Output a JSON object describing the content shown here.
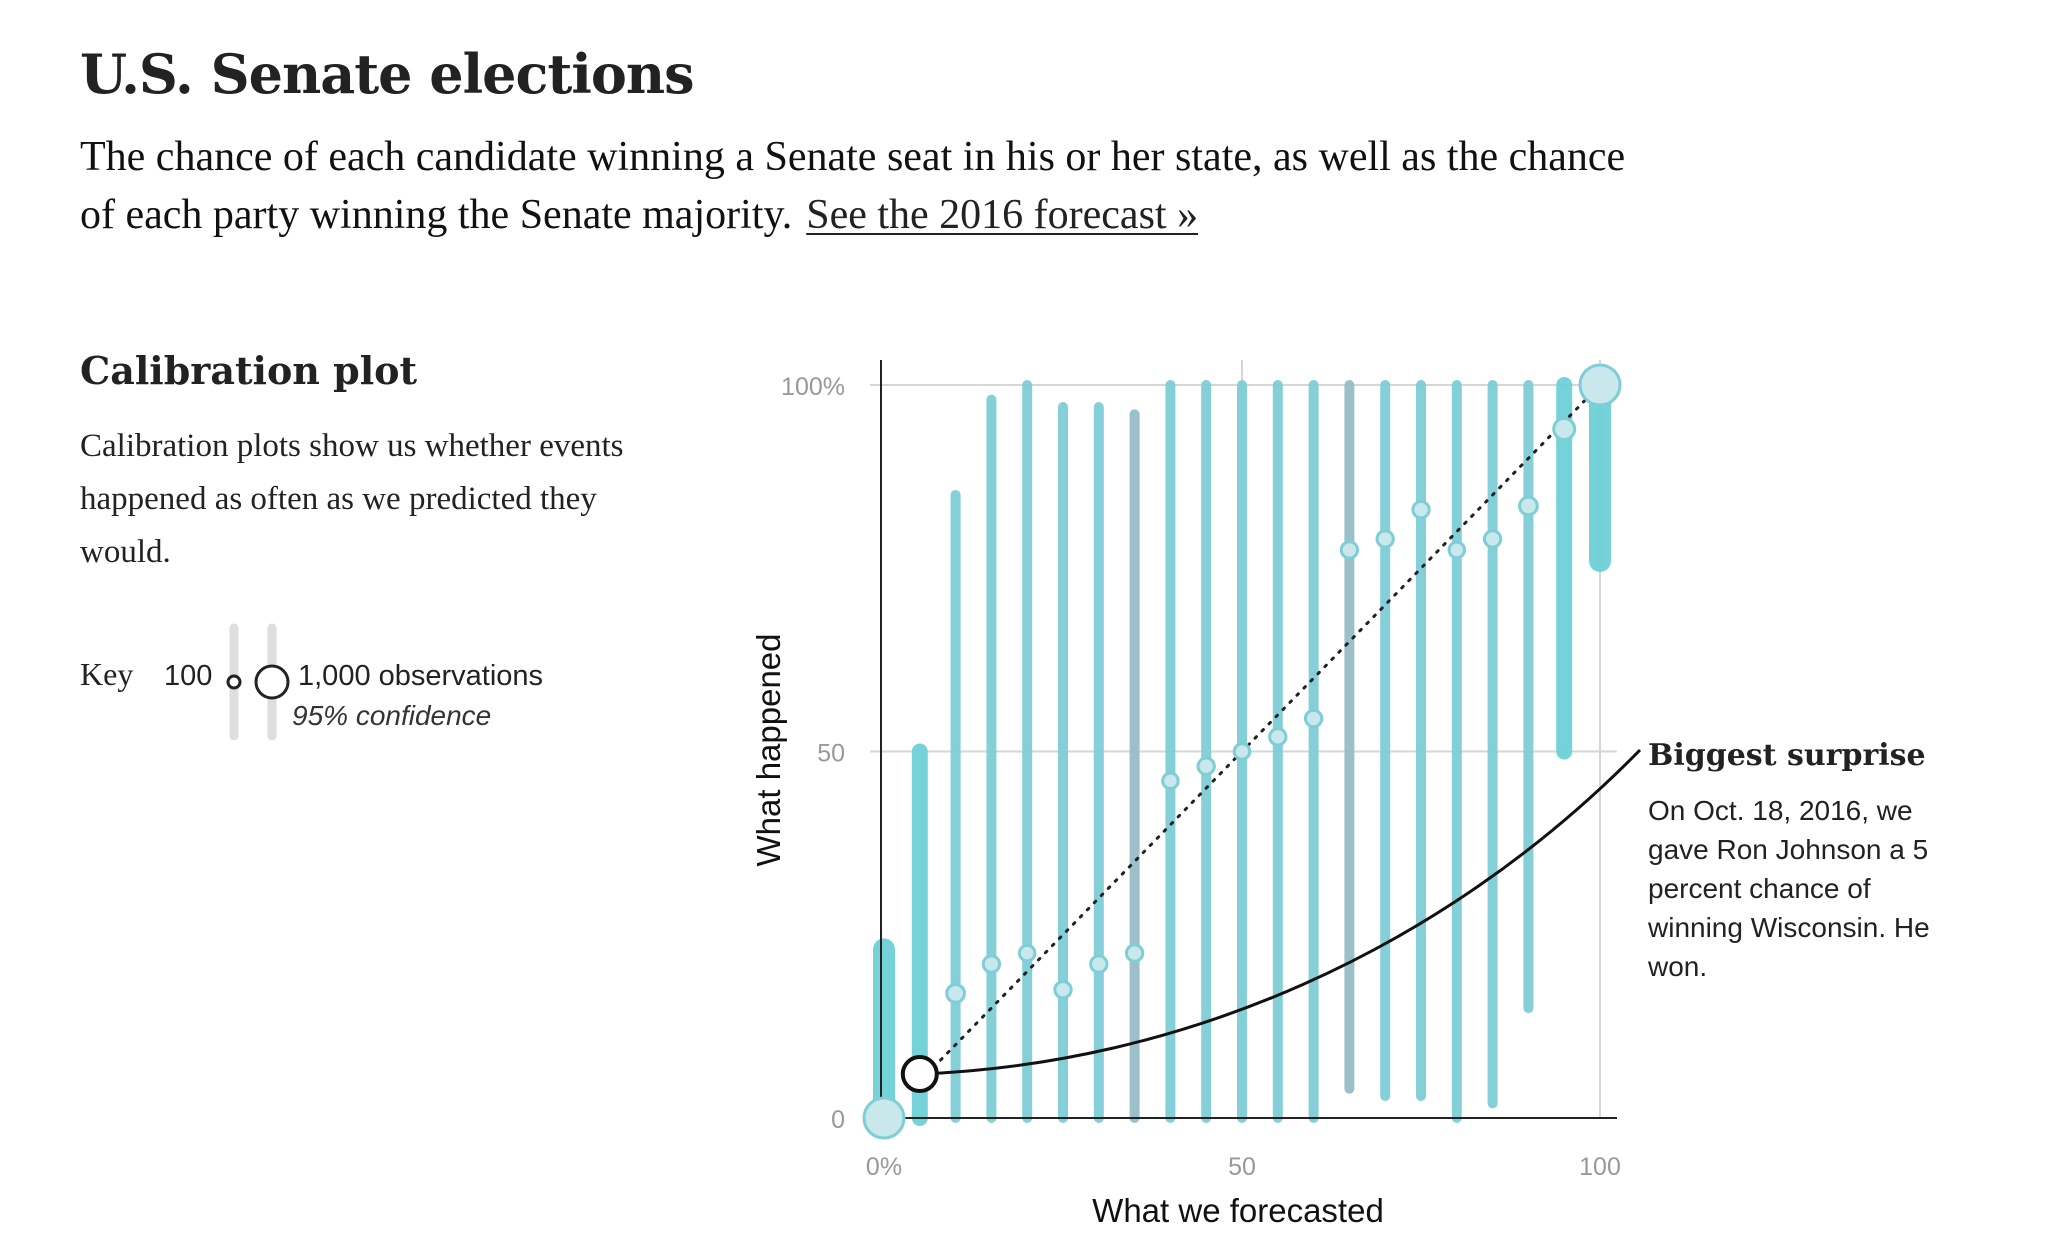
{
  "header": {
    "title": "U.S. Senate elections",
    "intro": "The chance of each candidate winning a Senate seat in his or her state, as well as the chance of each party winning the Senate majority.",
    "link_label": "See the 2016 forecast »"
  },
  "sidebar": {
    "title": "Calibration plot",
    "description": "Calibration plots show us whether events happened as often as we predicted they would.",
    "key": {
      "label": "Key",
      "small_value": "100",
      "large_value": "1,000 observations",
      "confidence_label": "95% confidence"
    }
  },
  "annotation": {
    "title": "Biggest surprise",
    "text": "On Oct. 18, 2016, we gave Ron Johnson a 5 percent chance of winning Wisconsin. He won."
  },
  "colors": {
    "teal": "#7fcdd6",
    "teal_dark": "#96bdc8",
    "teal_bright": "#6fd0d8",
    "dot_fill": "#c8e8ec",
    "axis": "#222222",
    "grid": "#d6d6d6"
  },
  "chart_data": {
    "type": "scatter",
    "xlabel": "What we forecasted",
    "ylabel": "What happened",
    "xlim": [
      0,
      100
    ],
    "ylim": [
      0,
      100
    ],
    "x_ticks": [
      {
        "value": 0,
        "label": "0%"
      },
      {
        "value": 50,
        "label": "50"
      },
      {
        "value": 100,
        "label": "100"
      }
    ],
    "y_ticks": [
      {
        "value": 0,
        "label": "0"
      },
      {
        "value": 50,
        "label": "50"
      },
      {
        "value": 100,
        "label": "100%"
      }
    ],
    "grid": true,
    "diagonal": [
      [
        0,
        0
      ],
      [
        100,
        100
      ]
    ],
    "points": [
      {
        "x": 0,
        "y": 0,
        "low": 0,
        "high": 23,
        "obs": 900
      },
      {
        "x": 5,
        "y": 6,
        "low": 0,
        "high": 50,
        "obs": 120
      },
      {
        "x": 10,
        "y": 17,
        "low": 0,
        "high": 85,
        "obs": 60
      },
      {
        "x": 15,
        "y": 21,
        "low": 0,
        "high": 98,
        "obs": 40
      },
      {
        "x": 20,
        "y": 22.5,
        "low": 0,
        "high": 100,
        "obs": 30
      },
      {
        "x": 25,
        "y": 17.5,
        "low": 0,
        "high": 97,
        "obs": 40
      },
      {
        "x": 30,
        "y": 21,
        "low": 0,
        "high": 97,
        "obs": 40
      },
      {
        "x": 35,
        "y": 22.5,
        "low": 0,
        "high": 96,
        "obs": 40
      },
      {
        "x": 40,
        "y": 46,
        "low": 0,
        "high": 100,
        "obs": 30
      },
      {
        "x": 45,
        "y": 48,
        "low": 0,
        "high": 100,
        "obs": 40
      },
      {
        "x": 50,
        "y": 50,
        "low": 0,
        "high": 100,
        "obs": 30
      },
      {
        "x": 55,
        "y": 52,
        "low": 0,
        "high": 100,
        "obs": 40
      },
      {
        "x": 60,
        "y": 54.5,
        "low": 0,
        "high": 100,
        "obs": 40
      },
      {
        "x": 65,
        "y": 77.5,
        "low": 4,
        "high": 100,
        "obs": 40
      },
      {
        "x": 70,
        "y": 79,
        "low": 3,
        "high": 100,
        "obs": 40
      },
      {
        "x": 75,
        "y": 83,
        "low": 3,
        "high": 100,
        "obs": 40
      },
      {
        "x": 80,
        "y": 77.5,
        "low": 0,
        "high": 100,
        "obs": 30
      },
      {
        "x": 85,
        "y": 79,
        "low": 2,
        "high": 100,
        "obs": 40
      },
      {
        "x": 90,
        "y": 83.5,
        "low": 15,
        "high": 100,
        "obs": 60
      },
      {
        "x": 95,
        "y": 94,
        "low": 50,
        "high": 100,
        "obs": 120
      },
      {
        "x": 100,
        "y": 100,
        "low": 76,
        "high": 100,
        "obs": 900
      }
    ],
    "highlight": {
      "x": 5,
      "y": 6
    }
  }
}
